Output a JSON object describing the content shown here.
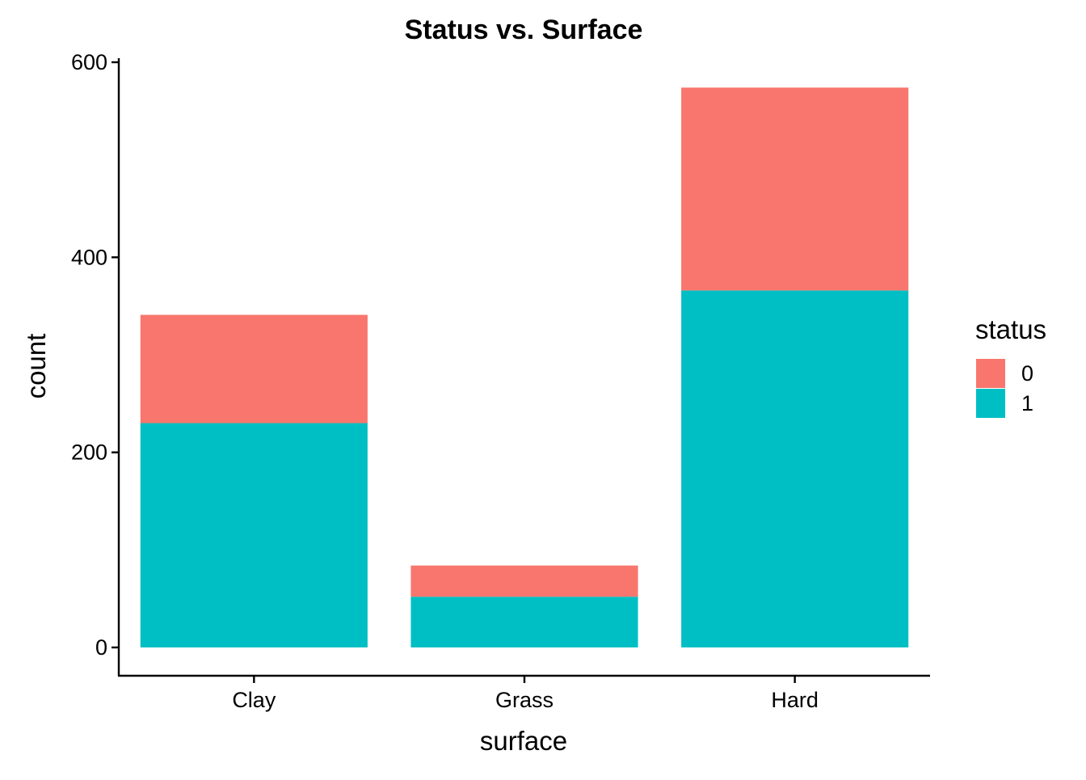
{
  "chart_data": {
    "type": "bar",
    "stacked": true,
    "title": "Status vs. Surface",
    "xlabel": "surface",
    "ylabel": "count",
    "categories": [
      "Clay",
      "Grass",
      "Hard"
    ],
    "series": [
      {
        "name": "0",
        "values": [
          111,
          32,
          208
        ],
        "color": "#F8766D"
      },
      {
        "name": "1",
        "values": [
          230,
          52,
          366
        ],
        "color": "#00BFC4"
      }
    ],
    "ylim": [
      0,
      600
    ],
    "yticks": [
      0,
      200,
      400,
      600
    ],
    "grid": false,
    "legend": {
      "title": "status",
      "placement": "right",
      "entries": [
        "0",
        "1"
      ]
    }
  }
}
